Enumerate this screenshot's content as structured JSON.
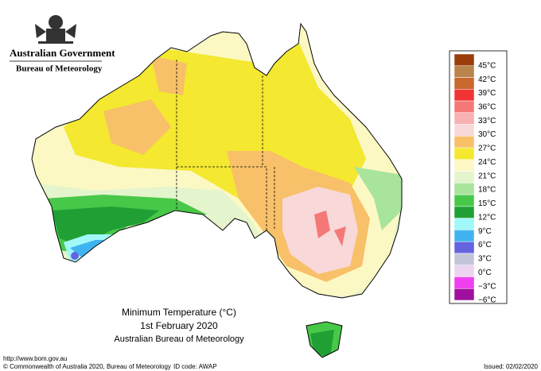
{
  "header": {
    "title": "Australian Government",
    "subtitle": "Bureau of Meteorology"
  },
  "caption": {
    "title": "Minimum Temperature (°C)",
    "date": "1st February 2020",
    "source": "Australian Bureau of Meteorology"
  },
  "legend": {
    "labels": [
      "45°C",
      "42°C",
      "39°C",
      "36°C",
      "33°C",
      "30°C",
      "27°C",
      "24°C",
      "21°C",
      "18°C",
      "15°C",
      "12°C",
      "9°C",
      "6°C",
      "3°C",
      "0°C",
      "−3°C",
      "−6°C"
    ],
    "colors": [
      "#9a3c0c",
      "#b8844c",
      "#c8682c",
      "#f03434",
      "#f47878",
      "#f8b0b0",
      "#f8d8d8",
      "#f8c068",
      "#f4e830",
      "#fcf8c4",
      "#e4f4cc",
      "#a8e49c",
      "#48c848",
      "#20a034",
      "#a0f8f8",
      "#40b4f0",
      "#6464e0",
      "#c4c4d8",
      "#ecd4f0",
      "#f040f0",
      "#a010a0"
    ]
  },
  "footer": {
    "url": "http://www.bom.gov.au",
    "copyright": "© Commonwealth of Australia 2020, Bureau of Meteorology",
    "id_code": "ID code: AWAP",
    "issued": "Issued: 02/02/2020"
  }
}
